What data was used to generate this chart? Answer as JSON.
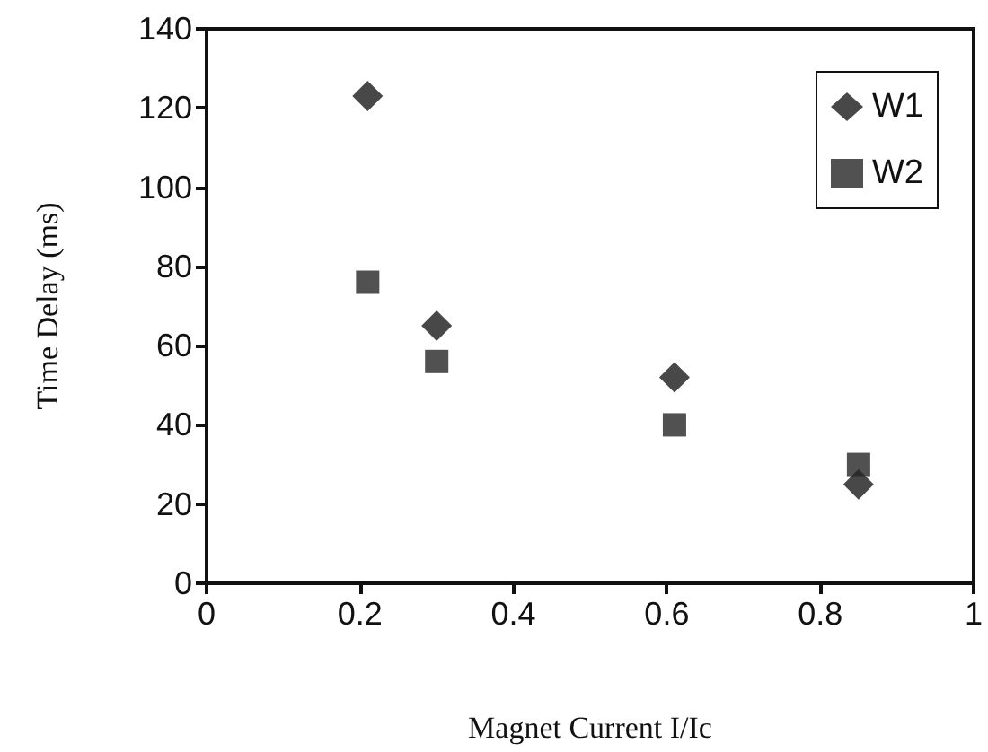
{
  "chart_data": {
    "type": "scatter",
    "xlabel": "Magnet Current I/Ic",
    "ylabel": "Time Delay (ms)",
    "xlim": [
      0,
      1
    ],
    "xticks": [
      0,
      0.2,
      0.4,
      0.6,
      0.8,
      1
    ],
    "ylim": [
      0,
      140
    ],
    "yticks": [
      0,
      20,
      40,
      60,
      80,
      100,
      120,
      140
    ],
    "grid": false,
    "legend": "top right",
    "series": [
      {
        "name": "W1",
        "color": "#1a1a1a",
        "marker": "diamond",
        "x": [
          0.21,
          0.3,
          0.61,
          0.85
        ],
        "values": [
          123,
          65,
          52,
          25
        ]
      },
      {
        "name": "W2",
        "color": "#262626",
        "marker": "square",
        "x": [
          0.21,
          0.3,
          0.61,
          0.85
        ],
        "values": [
          76,
          56,
          40,
          30
        ]
      }
    ]
  }
}
